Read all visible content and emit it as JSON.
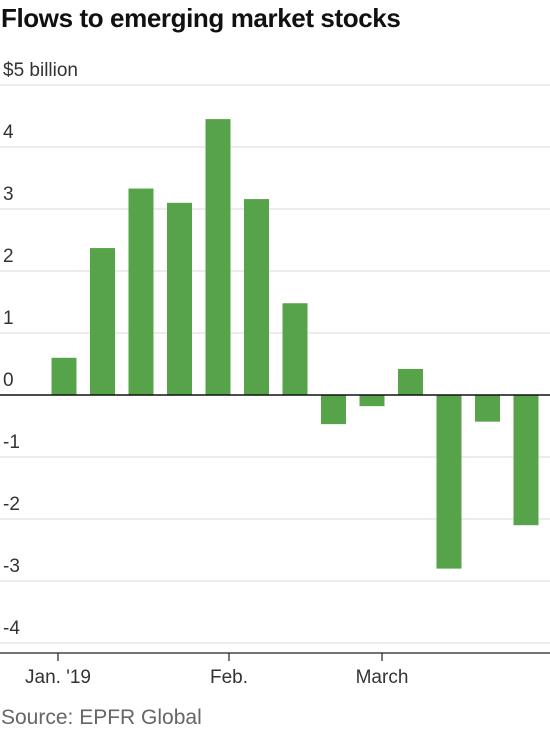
{
  "title": "Flows to emerging market stocks",
  "source": "Source: EPFR Global",
  "chart_data": {
    "type": "bar",
    "unit_label": "$5 billion",
    "x_labels": [
      "Jan. '19",
      "Feb.",
      "March"
    ],
    "values": [
      0.6,
      2.37,
      3.33,
      3.1,
      4.45,
      3.16,
      1.48,
      -0.47,
      -0.18,
      0.42,
      -2.8,
      -0.43,
      -2.1
    ],
    "ylim": [
      -4,
      5
    ],
    "y_ticks": [
      "-4",
      "-3",
      "-2",
      "-1",
      "0",
      "1",
      "2",
      "3",
      "4"
    ],
    "grid": true,
    "bar_color": "#57a34a"
  }
}
